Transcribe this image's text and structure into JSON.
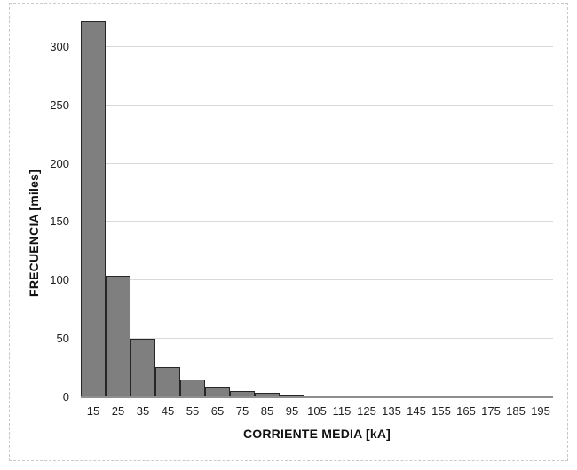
{
  "chart_data": {
    "type": "bar",
    "subtype": "histogram",
    "xlabel": "CORRIENTE MEDIA [kA]",
    "ylabel": "FRECUENCIA [miles]",
    "categories": [
      "15",
      "25",
      "35",
      "45",
      "55",
      "65",
      "75",
      "85",
      "95",
      "105",
      "115",
      "125",
      "135",
      "145",
      "155",
      "165",
      "175",
      "185",
      "195"
    ],
    "values": [
      322,
      104,
      50,
      26,
      15,
      9,
      5,
      3.5,
      2,
      1.5,
      1.2,
      0.8,
      0.3,
      0.2,
      0.1,
      0.1,
      0,
      0,
      0
    ],
    "yticks": [
      0,
      50,
      100,
      150,
      200,
      250,
      300
    ],
    "ylim": [
      0,
      325
    ],
    "grid": true,
    "legend": "none",
    "gap_width": 0,
    "colors": {
      "bar_fill": "#7f7f7f",
      "bar_border": "#262626",
      "gridline": "#d9d9d9",
      "axis_line": "#8f8f8f",
      "text": "#1f1f1f",
      "background": "#ffffff",
      "frame_border": "#c9c9c9"
    }
  }
}
